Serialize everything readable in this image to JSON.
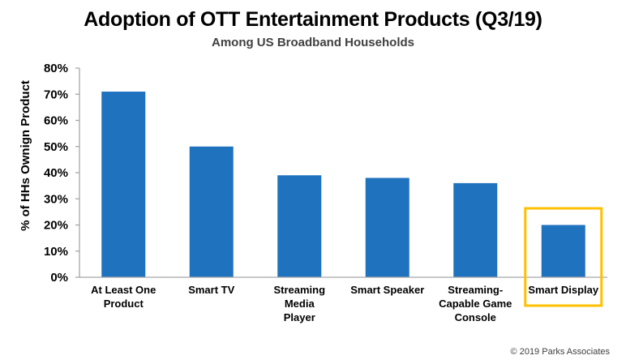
{
  "chart_data": {
    "type": "bar",
    "title": "Adoption of OTT Entertainment Products (Q3/19)",
    "subtitle": "Among US Broadband Households",
    "xlabel": "",
    "ylabel": "% of HHs Ownign Product",
    "ylim": [
      0,
      80
    ],
    "yticks": [
      0,
      10,
      20,
      30,
      40,
      50,
      60,
      70,
      80
    ],
    "ytick_labels": [
      "0%",
      "10%",
      "20%",
      "30%",
      "40%",
      "50%",
      "60%",
      "70%",
      "80%"
    ],
    "categories": [
      [
        "At Least One",
        "Product"
      ],
      [
        "Smart TV"
      ],
      [
        "Streaming",
        "Media",
        "Player"
      ],
      [
        "Smart Speaker"
      ],
      [
        "Streaming-",
        "Capable Game",
        "Console"
      ],
      [
        "Smart Display"
      ]
    ],
    "values": [
      71,
      50,
      39,
      38,
      36,
      20
    ],
    "highlighted_category_index": 5,
    "grid": false,
    "legend": "none",
    "colors": {
      "bar": "#1F72BE",
      "highlight": "#FFC000",
      "axis": "#A6A6A6"
    }
  },
  "footer": {
    "copyright": "© 2019 Parks Associates"
  }
}
